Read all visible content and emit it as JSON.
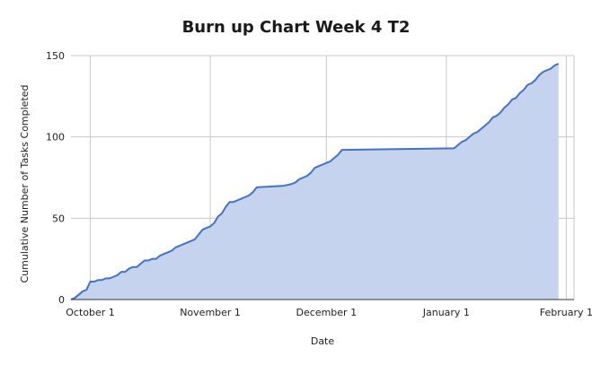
{
  "chart_data": {
    "type": "area",
    "title": "Burn up Chart Week 4 T2",
    "xlabel": "Date",
    "ylabel": "Cumulative Number of Tasks Completed",
    "x_axis_type": "date",
    "xlim": [
      "2023-09-26",
      "2024-02-03"
    ],
    "ylim": [
      0,
      150
    ],
    "y_ticks": [
      0,
      50,
      100,
      150
    ],
    "x_ticks": [
      {
        "date": "2023-10-01",
        "label": "October 1"
      },
      {
        "date": "2023-11-01",
        "label": "November 1"
      },
      {
        "date": "2023-12-01",
        "label": "December 1"
      },
      {
        "date": "2024-01-01",
        "label": "January 1"
      },
      {
        "date": "2024-02-01",
        "label": "February 1"
      }
    ],
    "grid": true,
    "legend": "none",
    "colors": {
      "line": "#4472c4",
      "fill": "#c5d3ef"
    },
    "series": [
      {
        "points": [
          [
            "2023-09-26",
            0
          ],
          [
            "2023-09-27",
            1
          ],
          [
            "2023-09-28",
            3
          ],
          [
            "2023-09-29",
            5
          ],
          [
            "2023-09-30",
            6
          ],
          [
            "2023-10-01",
            11
          ],
          [
            "2023-10-02",
            11
          ],
          [
            "2023-10-03",
            12
          ],
          [
            "2023-10-04",
            12
          ],
          [
            "2023-10-05",
            13
          ],
          [
            "2023-10-06",
            13
          ],
          [
            "2023-10-07",
            14
          ],
          [
            "2023-10-08",
            15
          ],
          [
            "2023-10-09",
            17
          ],
          [
            "2023-10-10",
            17
          ],
          [
            "2023-10-11",
            19
          ],
          [
            "2023-10-12",
            20
          ],
          [
            "2023-10-13",
            20
          ],
          [
            "2023-10-14",
            22
          ],
          [
            "2023-10-15",
            24
          ],
          [
            "2023-10-16",
            24
          ],
          [
            "2023-10-17",
            25
          ],
          [
            "2023-10-18",
            25
          ],
          [
            "2023-10-19",
            27
          ],
          [
            "2023-10-20",
            28
          ],
          [
            "2023-10-21",
            29
          ],
          [
            "2023-10-22",
            30
          ],
          [
            "2023-10-23",
            32
          ],
          [
            "2023-10-24",
            33
          ],
          [
            "2023-10-25",
            34
          ],
          [
            "2023-10-26",
            35
          ],
          [
            "2023-10-27",
            36
          ],
          [
            "2023-10-28",
            37
          ],
          [
            "2023-10-29",
            40
          ],
          [
            "2023-10-30",
            43
          ],
          [
            "2023-10-31",
            44
          ],
          [
            "2023-11-01",
            45
          ],
          [
            "2023-11-02",
            47
          ],
          [
            "2023-11-03",
            51
          ],
          [
            "2023-11-04",
            53
          ],
          [
            "2023-11-05",
            57
          ],
          [
            "2023-11-06",
            60
          ],
          [
            "2023-11-07",
            60
          ],
          [
            "2023-11-08",
            61
          ],
          [
            "2023-11-09",
            62
          ],
          [
            "2023-11-10",
            63
          ],
          [
            "2023-11-11",
            64
          ],
          [
            "2023-11-12",
            66
          ],
          [
            "2023-11-13",
            69
          ],
          [
            "2023-11-20",
            70
          ],
          [
            "2023-11-22",
            71
          ],
          [
            "2023-11-23",
            72
          ],
          [
            "2023-11-24",
            74
          ],
          [
            "2023-11-25",
            75
          ],
          [
            "2023-11-26",
            76
          ],
          [
            "2023-11-27",
            78
          ],
          [
            "2023-11-28",
            81
          ],
          [
            "2023-11-29",
            82
          ],
          [
            "2023-11-30",
            83
          ],
          [
            "2023-12-01",
            84
          ],
          [
            "2023-12-02",
            85
          ],
          [
            "2023-12-03",
            87
          ],
          [
            "2023-12-04",
            89
          ],
          [
            "2023-12-05",
            92
          ],
          [
            "2024-01-03",
            93
          ],
          [
            "2024-01-04",
            95
          ],
          [
            "2024-01-05",
            97
          ],
          [
            "2024-01-06",
            98
          ],
          [
            "2024-01-07",
            100
          ],
          [
            "2024-01-08",
            102
          ],
          [
            "2024-01-09",
            103
          ],
          [
            "2024-01-10",
            105
          ],
          [
            "2024-01-11",
            107
          ],
          [
            "2024-01-12",
            109
          ],
          [
            "2024-01-13",
            112
          ],
          [
            "2024-01-14",
            113
          ],
          [
            "2024-01-15",
            115
          ],
          [
            "2024-01-16",
            118
          ],
          [
            "2024-01-17",
            120
          ],
          [
            "2024-01-18",
            123
          ],
          [
            "2024-01-19",
            124
          ],
          [
            "2024-01-20",
            127
          ],
          [
            "2024-01-21",
            129
          ],
          [
            "2024-01-22",
            132
          ],
          [
            "2024-01-23",
            133
          ],
          [
            "2024-01-24",
            135
          ],
          [
            "2024-01-25",
            138
          ],
          [
            "2024-01-26",
            140
          ],
          [
            "2024-01-27",
            141
          ],
          [
            "2024-01-28",
            142
          ],
          [
            "2024-01-29",
            144
          ],
          [
            "2024-01-30",
            145
          ]
        ]
      }
    ]
  }
}
